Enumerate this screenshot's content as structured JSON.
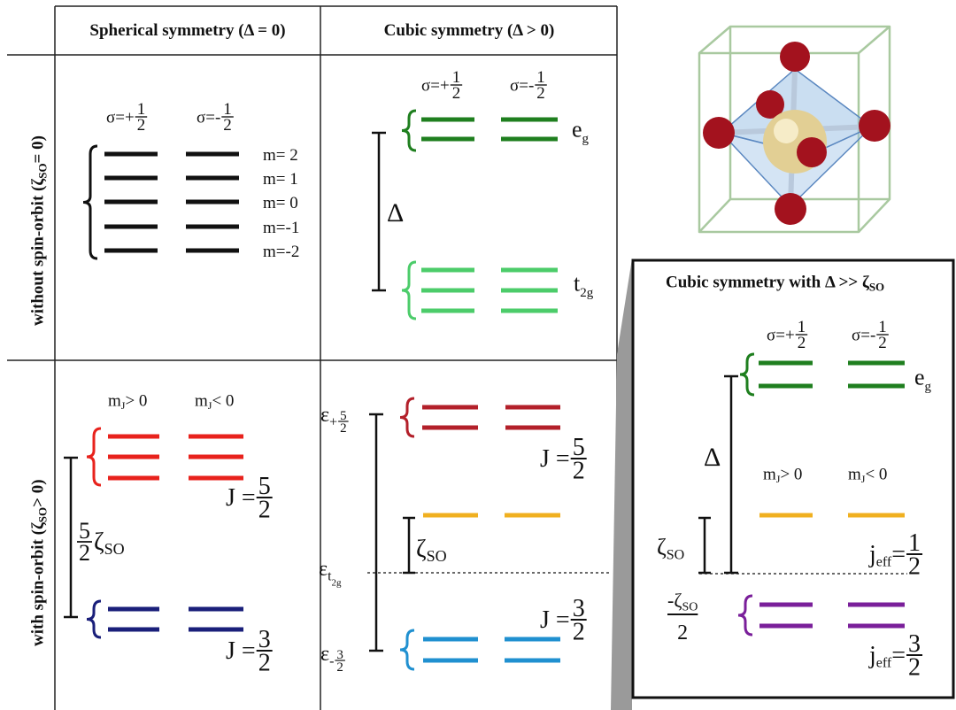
{
  "header": {
    "col1": "Spherical symmetry (Δ = 0)",
    "col2": "Cubic symmetry (Δ > 0)"
  },
  "rows": {
    "row1": {
      "text": "without spin-orbit (ζ",
      "sub": "SO",
      "rest": " = 0)"
    },
    "row2": {
      "text": "with spin-orbit (ζ",
      "sub": "SO",
      "rest": " > 0)"
    }
  },
  "spherical_no_so": {
    "sigma_up": {
      "prefix": "σ=+",
      "num": "1",
      "den": "2"
    },
    "sigma_down": {
      "prefix": "σ=-",
      "num": "1",
      "den": "2"
    },
    "m_labels": [
      "m= 2",
      "m= 1",
      "m= 0",
      "m=-1",
      "m=-2"
    ]
  },
  "cubic_no_so": {
    "sigma_up": {
      "prefix": "σ=+",
      "num": "1",
      "den": "2"
    },
    "sigma_down": {
      "prefix": "σ=-",
      "num": "1",
      "den": "2"
    },
    "delta": "Δ",
    "eg": {
      "base": "e",
      "sub": "g"
    },
    "t2g": {
      "base": "t",
      "sub": "2g"
    }
  },
  "spherical_so": {
    "mj_pos": {
      "base": "m",
      "sub": "J",
      "rest": " > 0"
    },
    "mj_neg": {
      "base": "m",
      "sub": "J",
      "rest": " < 0"
    },
    "j52": {
      "prefix": "J = ",
      "num": "5",
      "den": "2"
    },
    "j32": {
      "prefix": "J = ",
      "num": "3",
      "den": "2"
    },
    "splitting": {
      "num": "5",
      "den": "2",
      "symbol": "ζ",
      "sub": "SO"
    }
  },
  "cubic_so": {
    "eps_plus": {
      "base": "ε",
      "sub": "+",
      "num": "5",
      "den": "2"
    },
    "eps_t2g": {
      "base": "ε",
      "sub": "t",
      "subsub": "2g"
    },
    "eps_minus": {
      "base": "ε",
      "sub": "-",
      "num": "3",
      "den": "2"
    },
    "zeta": {
      "base": "ζ",
      "sub": "SO"
    },
    "j52": {
      "prefix": "J = ",
      "num": "5",
      "den": "2"
    },
    "j32": {
      "prefix": "J = ",
      "num": "3",
      "den": "2"
    }
  },
  "inset": {
    "title": {
      "text": "Cubic symmetry with Δ >> ζ",
      "sub": "SO"
    },
    "sigma_up": {
      "prefix": "σ=+",
      "num": "1",
      "den": "2"
    },
    "sigma_down": {
      "prefix": "σ=-",
      "num": "1",
      "den": "2"
    },
    "eg": {
      "base": "e",
      "sub": "g"
    },
    "delta": "Δ",
    "mj_pos": {
      "base": "m",
      "sub": "J",
      "rest": " > 0"
    },
    "mj_neg": {
      "base": "m",
      "sub": "J",
      "rest": " < 0"
    },
    "zeta": {
      "base": "ζ",
      "sub": "SO"
    },
    "minus_half_zeta": {
      "base": "-ζ",
      "sub": "SO",
      "den": "2"
    },
    "jeff_half": {
      "base": "j",
      "sub": "eff",
      "prefix": "=",
      "num": "1",
      "den": "2"
    },
    "jeff_three_half": {
      "base": "j",
      "sub": "eff",
      "prefix": "=",
      "num": "3",
      "den": "2"
    }
  }
}
